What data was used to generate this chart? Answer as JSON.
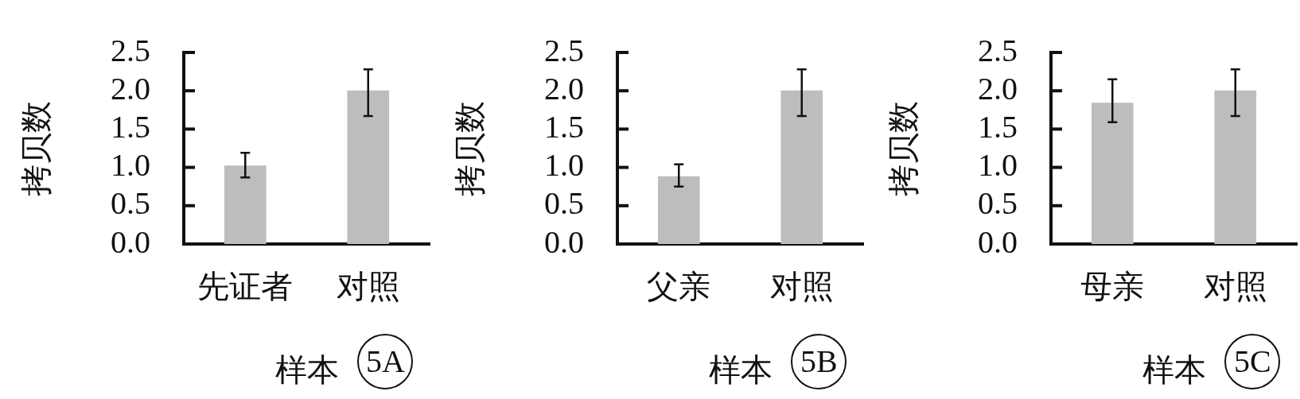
{
  "chart_data": [
    {
      "type": "bar",
      "categories": [
        "先证者",
        "对照"
      ],
      "values": [
        1.02,
        2.0
      ],
      "errors": [
        [
          0.87,
          1.19
        ],
        [
          1.67,
          2.28
        ]
      ],
      "color": "#bdbdbd",
      "ylabel": "拷贝数",
      "xlabel": "样本",
      "ylim": [
        0,
        2.5
      ],
      "yticks": [
        {
          "value": 0,
          "label": "0.0"
        },
        {
          "value": 0.5,
          "label": "0.5"
        },
        {
          "value": 1,
          "label": "1.0"
        },
        {
          "value": 1.5,
          "label": "1.5"
        },
        {
          "value": 2,
          "label": "2.0"
        },
        {
          "value": 2.5,
          "label": "2.5"
        }
      ],
      "annotations": [
        "5A"
      ]
    },
    {
      "type": "bar",
      "categories": [
        "父亲",
        "对照"
      ],
      "values": [
        0.88,
        2.0
      ],
      "errors": [
        [
          0.75,
          1.04
        ],
        [
          1.67,
          2.28
        ]
      ],
      "color": "#bdbdbd",
      "ylabel": "拷贝数",
      "xlabel": "样本",
      "ylim": [
        0,
        2.5
      ],
      "yticks": [
        {
          "value": 0,
          "label": "0.0"
        },
        {
          "value": 0.5,
          "label": "0.5"
        },
        {
          "value": 1,
          "label": "1.0"
        },
        {
          "value": 1.5,
          "label": "1.5"
        },
        {
          "value": 2,
          "label": "2.0"
        },
        {
          "value": 2.5,
          "label": "2.5"
        }
      ],
      "annotations": [
        "5B"
      ]
    },
    {
      "type": "bar",
      "categories": [
        "母亲",
        "对照"
      ],
      "values": [
        1.84,
        2.0
      ],
      "errors": [
        [
          1.59,
          2.15
        ],
        [
          1.67,
          2.28
        ]
      ],
      "color": "#bdbdbd",
      "ylabel": "拷贝数",
      "xlabel": "样本",
      "ylim": [
        0,
        2.5
      ],
      "yticks": [
        {
          "value": 0,
          "label": "0.0"
        },
        {
          "value": 0.5,
          "label": "0.5"
        },
        {
          "value": 1,
          "label": "1.0"
        },
        {
          "value": 1.5,
          "label": "1.5"
        },
        {
          "value": 2,
          "label": "2.0"
        },
        {
          "value": 2.5,
          "label": "2.5"
        }
      ],
      "annotations": [
        "5C"
      ]
    }
  ]
}
